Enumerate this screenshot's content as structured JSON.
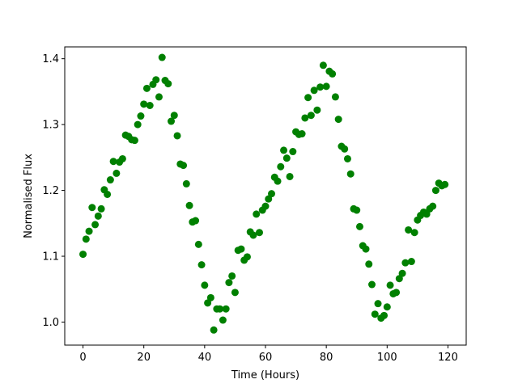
{
  "chart_data": {
    "type": "scatter",
    "title": "",
    "xlabel": "Time (Hours)",
    "ylabel": "Normalised Flux",
    "xlim": [
      -6,
      126
    ],
    "ylim": [
      0.965,
      1.418
    ],
    "x_ticks": [
      0,
      20,
      40,
      60,
      80,
      100,
      120
    ],
    "y_ticks": [
      1.0,
      1.1,
      1.2,
      1.3,
      1.4
    ],
    "x_tick_labels": [
      "0",
      "20",
      "40",
      "60",
      "80",
      "100",
      "120"
    ],
    "y_tick_labels": [
      "1.0",
      "1.1",
      "1.2",
      "1.3",
      "1.4"
    ],
    "grid": false,
    "marker_color": "#008000",
    "series": [
      {
        "points": [
          [
            0,
            1.103
          ],
          [
            1,
            1.126
          ],
          [
            2,
            1.138
          ],
          [
            3,
            1.174
          ],
          [
            4,
            1.148
          ],
          [
            5,
            1.161
          ],
          [
            6,
            1.172
          ],
          [
            7,
            1.201
          ],
          [
            8,
            1.194
          ],
          [
            9,
            1.216
          ],
          [
            10,
            1.244
          ],
          [
            11,
            1.226
          ],
          [
            12,
            1.243
          ],
          [
            13,
            1.248
          ],
          [
            14,
            1.284
          ],
          [
            15,
            1.282
          ],
          [
            16,
            1.277
          ],
          [
            17,
            1.276
          ],
          [
            18,
            1.3
          ],
          [
            19,
            1.313
          ],
          [
            20,
            1.331
          ],
          [
            21,
            1.355
          ],
          [
            22,
            1.329
          ],
          [
            23,
            1.361
          ],
          [
            24,
            1.368
          ],
          [
            25,
            1.342
          ],
          [
            26,
            1.402
          ],
          [
            27,
            1.367
          ],
          [
            28,
            1.362
          ],
          [
            29,
            1.305
          ],
          [
            30,
            1.314
          ],
          [
            31,
            1.283
          ],
          [
            32,
            1.24
          ],
          [
            33,
            1.238
          ],
          [
            34,
            1.21
          ],
          [
            35,
            1.177
          ],
          [
            36,
            1.152
          ],
          [
            37,
            1.154
          ],
          [
            38,
            1.118
          ],
          [
            39,
            1.087
          ],
          [
            40,
            1.056
          ],
          [
            41,
            1.029
          ],
          [
            42,
            1.037
          ],
          [
            43,
            0.988
          ],
          [
            44,
            1.02
          ],
          [
            45,
            1.02
          ],
          [
            46,
            1.003
          ],
          [
            47,
            1.02
          ],
          [
            48,
            1.06
          ],
          [
            49,
            1.07
          ],
          [
            50,
            1.045
          ],
          [
            51,
            1.109
          ],
          [
            52,
            1.111
          ],
          [
            53,
            1.094
          ],
          [
            54,
            1.099
          ],
          [
            55,
            1.137
          ],
          [
            56,
            1.132
          ],
          [
            57,
            1.164
          ],
          [
            58,
            1.136
          ],
          [
            59,
            1.17
          ],
          [
            60,
            1.176
          ],
          [
            61,
            1.187
          ],
          [
            62,
            1.195
          ],
          [
            63,
            1.22
          ],
          [
            64,
            1.214
          ],
          [
            65,
            1.236
          ],
          [
            66,
            1.261
          ],
          [
            67,
            1.249
          ],
          [
            68,
            1.221
          ],
          [
            69,
            1.259
          ],
          [
            70,
            1.289
          ],
          [
            71,
            1.285
          ],
          [
            72,
            1.286
          ],
          [
            73,
            1.31
          ],
          [
            74,
            1.341
          ],
          [
            75,
            1.314
          ],
          [
            76,
            1.352
          ],
          [
            77,
            1.322
          ],
          [
            78,
            1.357
          ],
          [
            79,
            1.39
          ],
          [
            80,
            1.358
          ],
          [
            81,
            1.381
          ],
          [
            82,
            1.377
          ],
          [
            83,
            1.342
          ],
          [
            84,
            1.308
          ],
          [
            85,
            1.267
          ],
          [
            86,
            1.263
          ],
          [
            87,
            1.248
          ],
          [
            88,
            1.225
          ],
          [
            89,
            1.172
          ],
          [
            90,
            1.17
          ],
          [
            91,
            1.145
          ],
          [
            92,
            1.116
          ],
          [
            93,
            1.111
          ],
          [
            94,
            1.088
          ],
          [
            95,
            1.057
          ],
          [
            96,
            1.012
          ],
          [
            97,
            1.028
          ],
          [
            98,
            1.006
          ],
          [
            99,
            1.01
          ],
          [
            100,
            1.023
          ],
          [
            101,
            1.056
          ],
          [
            102,
            1.043
          ],
          [
            103,
            1.045
          ],
          [
            104,
            1.066
          ],
          [
            105,
            1.074
          ],
          [
            106,
            1.09
          ],
          [
            107,
            1.14
          ],
          [
            108,
            1.092
          ],
          [
            109,
            1.136
          ],
          [
            110,
            1.155
          ],
          [
            111,
            1.162
          ],
          [
            112,
            1.167
          ],
          [
            113,
            1.164
          ],
          [
            114,
            1.172
          ],
          [
            115,
            1.176
          ],
          [
            116,
            1.2
          ],
          [
            117,
            1.211
          ],
          [
            118,
            1.207
          ],
          [
            119,
            1.209
          ]
        ]
      }
    ]
  }
}
